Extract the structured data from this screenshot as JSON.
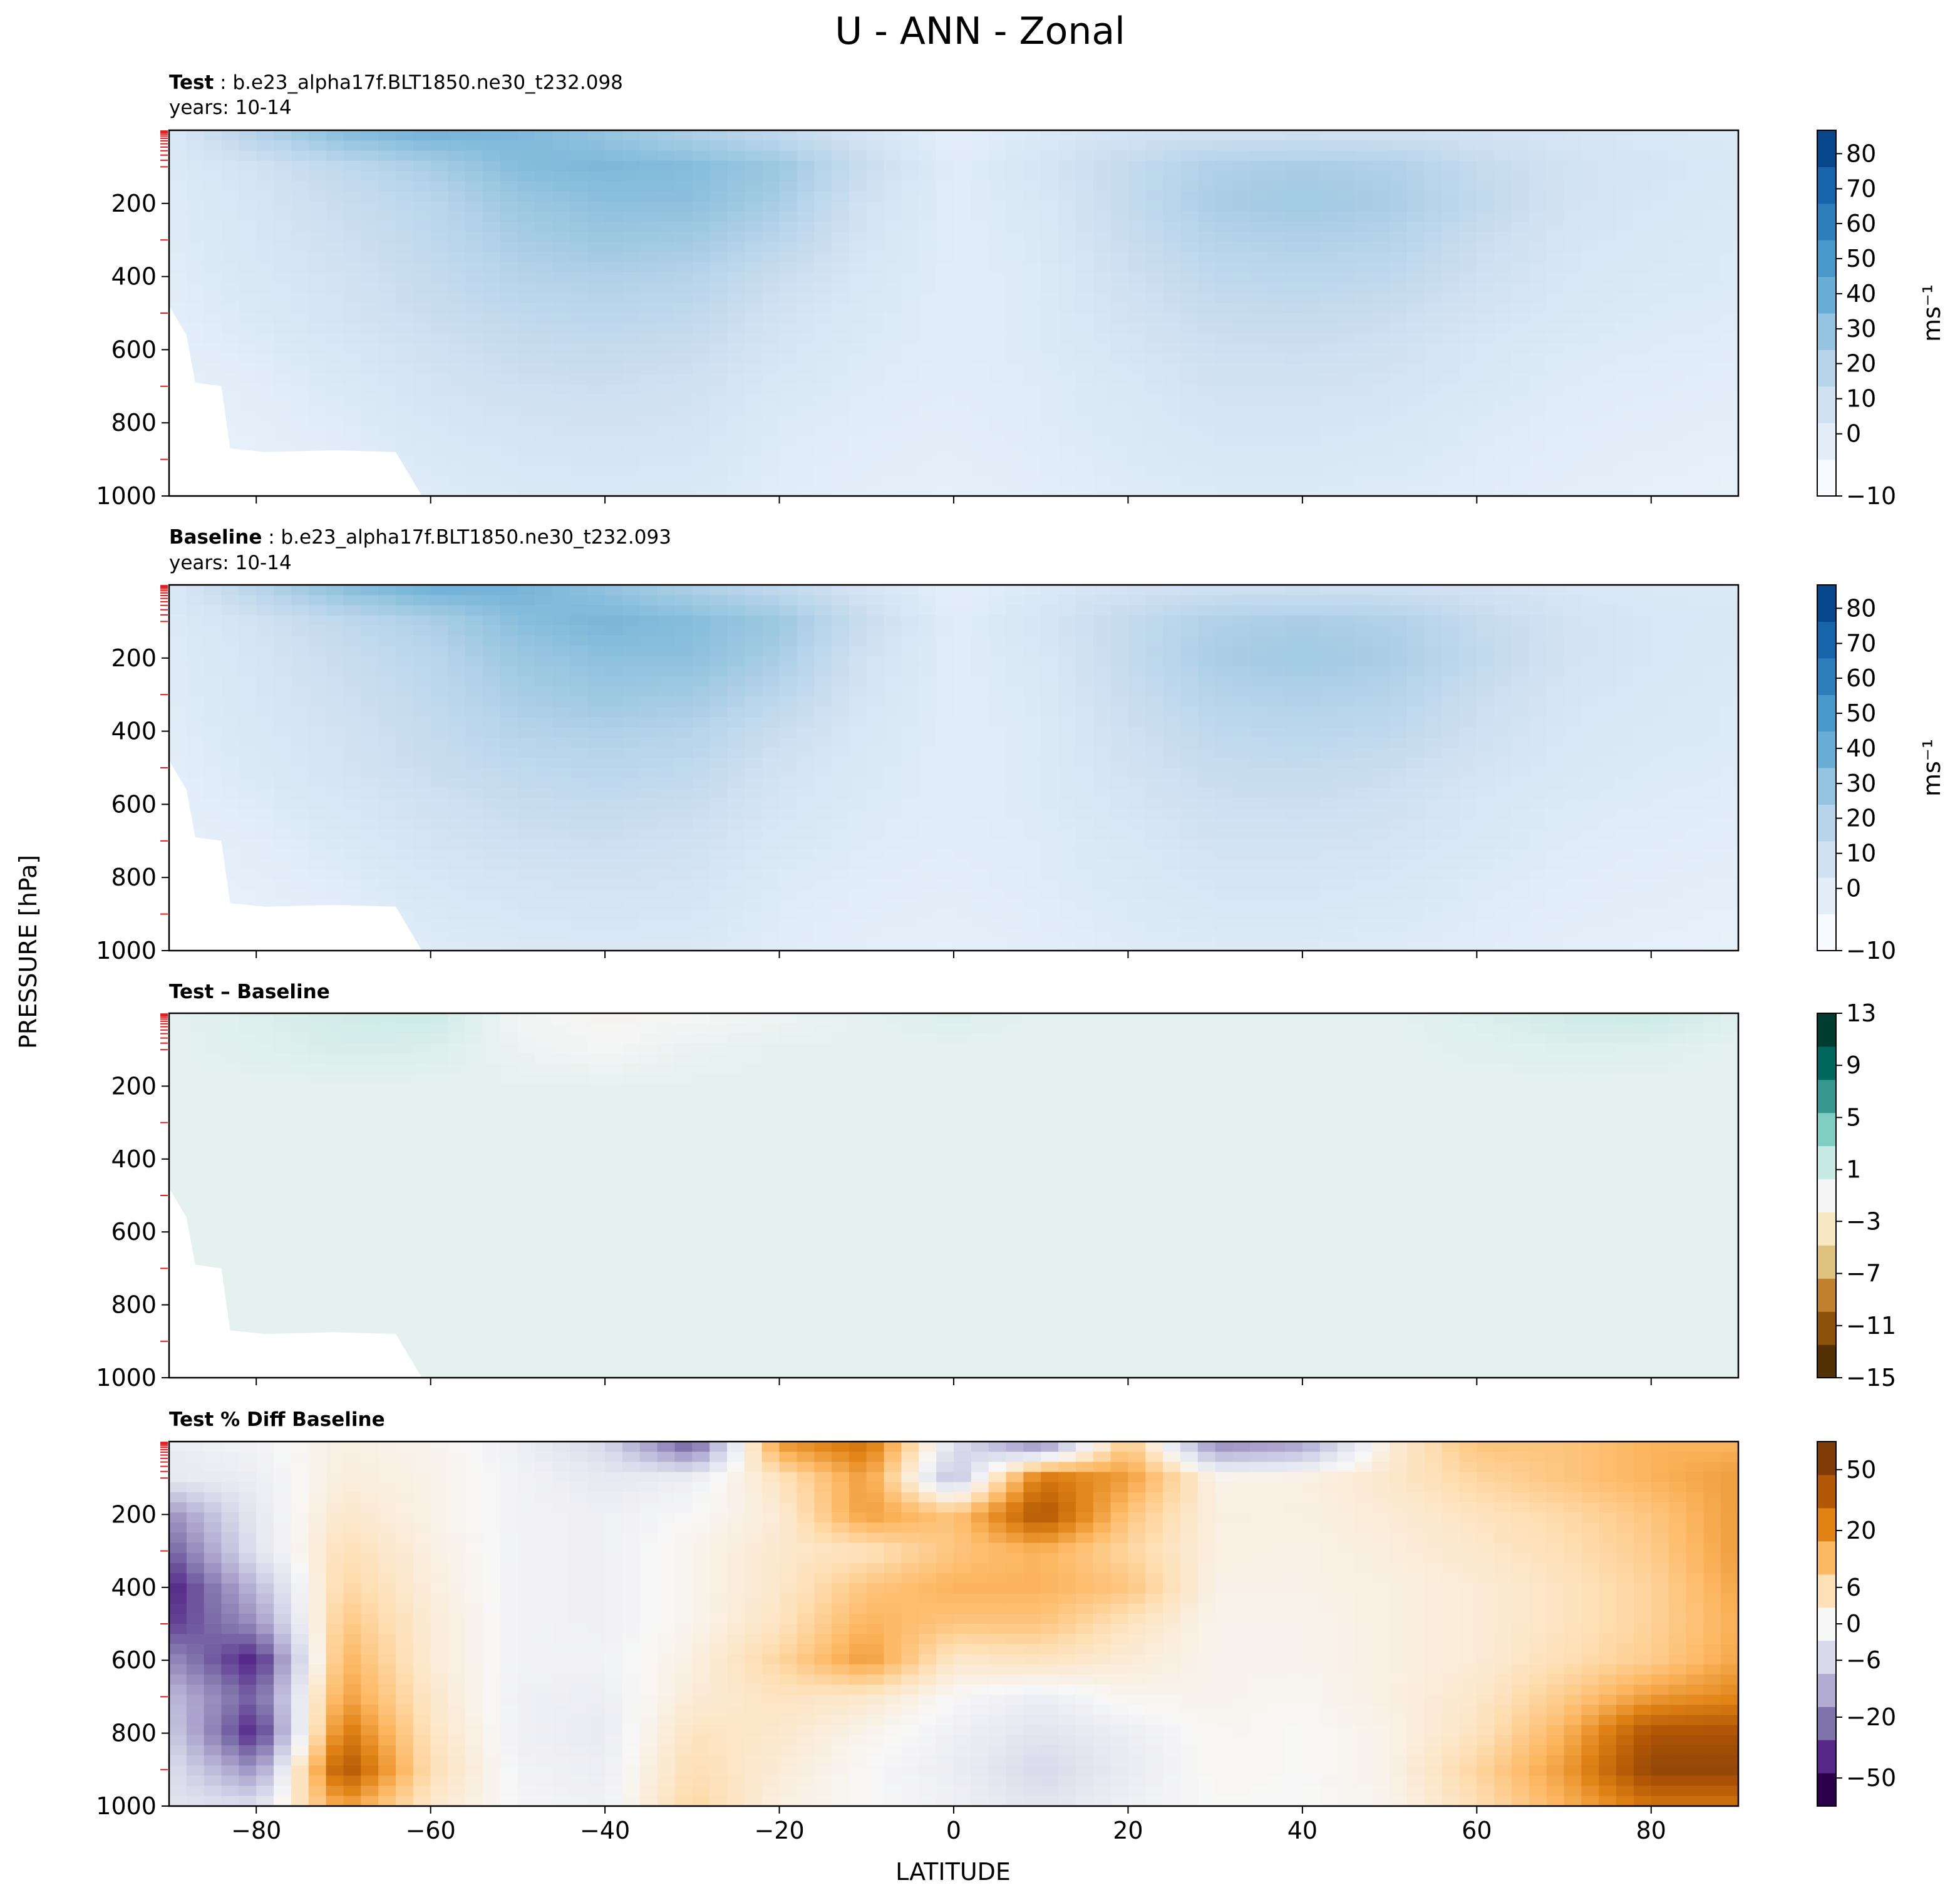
{
  "figure": {
    "title": "U - ANN - Zonal",
    "ylabel": "PRESSURE [hPa]",
    "xlabel": "LATITUDE"
  },
  "panels": [
    {
      "label_bold": "Test",
      "label_rest": " : b.e23_alpha17f.BLT1850.ne30_t232.098",
      "years": "years: 10-14",
      "yticks": [
        "200",
        "400",
        "600",
        "800",
        "1000"
      ],
      "colorbar": {
        "ticks": [
          "80",
          "70",
          "60",
          "50",
          "40",
          "30",
          "20",
          "10",
          "0",
          "−10"
        ],
        "unit": "ms⁻¹"
      }
    },
    {
      "label_bold": "Baseline",
      "label_rest": " : b.e23_alpha17f.BLT1850.ne30_t232.093",
      "years": "years: 10-14",
      "yticks": [
        "200",
        "400",
        "600",
        "800",
        "1000"
      ],
      "colorbar": {
        "ticks": [
          "80",
          "70",
          "60",
          "50",
          "40",
          "30",
          "20",
          "10",
          "0",
          "−10"
        ],
        "unit": "ms⁻¹"
      }
    },
    {
      "label_bold": "Test – Baseline",
      "label_rest": "",
      "years": "",
      "yticks": [
        "200",
        "400",
        "600",
        "800",
        "1000"
      ],
      "colorbar": {
        "ticks": [
          "13",
          "9",
          "5",
          "1",
          "−3",
          "−7",
          "−11",
          "−15"
        ],
        "unit": ""
      }
    },
    {
      "label_bold": "Test % Diff Baseline",
      "label_rest": "",
      "years": "",
      "yticks": [
        "200",
        "400",
        "600",
        "800",
        "1000"
      ],
      "xticks": [
        "−80",
        "−60",
        "−40",
        "−20",
        "0",
        "20",
        "40",
        "60",
        "80"
      ],
      "colorbar": {
        "ticks": [
          "50",
          "20",
          "6",
          "0",
          "−6",
          "−20",
          "−50"
        ],
        "unit": ""
      }
    }
  ],
  "colors": {
    "test_baseline_scale": [
      "#f7fbff",
      "#e3eef9",
      "#d0e1f2",
      "#b7d4ea",
      "#94c4df",
      "#6aaed6",
      "#4a98c9",
      "#2e7ebc",
      "#1764ab",
      "#08468b"
    ],
    "diff_scale": [
      "#543005",
      "#8c510a",
      "#bf812d",
      "#dfc27d",
      "#f6e8c3",
      "#f5f5f5",
      "#c7eae5",
      "#80cdc1",
      "#35978f",
      "#01665e",
      "#003c30"
    ],
    "pct_scale": [
      "#2d004b",
      "#542788",
      "#8073ac",
      "#b2abd2",
      "#d8daeb",
      "#f7f7f7",
      "#fee0b6",
      "#fdb863",
      "#e08214",
      "#b35806",
      "#7f3b08"
    ]
  },
  "chart_data": [
    {
      "type": "heatmap",
      "title": "Test : b.e23_alpha17f.BLT1850.ne30_t232.098",
      "xlabel": "LATITUDE",
      "ylabel": "PRESSURE [hPa]",
      "xlim": [
        -90,
        90
      ],
      "ylim": [
        1000,
        0
      ],
      "clim": [
        -10,
        85
      ],
      "x": [
        -90,
        -80,
        -70,
        -60,
        -50,
        -40,
        -30,
        -20,
        -10,
        0,
        10,
        20,
        30,
        40,
        50,
        60,
        70,
        80,
        90
      ],
      "y": [
        10,
        100,
        200,
        300,
        400,
        500,
        600,
        700,
        800,
        900,
        1000
      ],
      "z": [
        [
          5,
          22,
          35,
          40,
          38,
          32,
          25,
          18,
          8,
          0,
          5,
          10,
          12,
          12,
          12,
          10,
          8,
          6,
          4
        ],
        [
          4,
          10,
          18,
          26,
          36,
          38,
          36,
          30,
          14,
          2,
          8,
          16,
          24,
          26,
          24,
          16,
          10,
          8,
          6
        ],
        [
          3,
          8,
          14,
          20,
          30,
          34,
          34,
          26,
          10,
          2,
          6,
          16,
          26,
          28,
          26,
          18,
          10,
          7,
          5
        ],
        [
          3,
          7,
          12,
          18,
          26,
          30,
          28,
          20,
          8,
          2,
          5,
          14,
          22,
          24,
          22,
          14,
          8,
          6,
          4
        ],
        [
          2,
          6,
          10,
          16,
          22,
          24,
          22,
          14,
          6,
          2,
          4,
          12,
          18,
          20,
          18,
          12,
          7,
          5,
          4
        ],
        [
          1,
          5,
          9,
          14,
          18,
          20,
          18,
          10,
          5,
          2,
          4,
          10,
          15,
          16,
          14,
          9,
          6,
          4,
          3
        ],
        [
          0,
          3,
          7,
          11,
          15,
          16,
          14,
          8,
          4,
          2,
          4,
          8,
          12,
          13,
          11,
          7,
          4,
          3,
          2
        ],
        [
          -1,
          1,
          5,
          9,
          12,
          13,
          11,
          6,
          3,
          2,
          3,
          6,
          10,
          10,
          9,
          6,
          3,
          2,
          1
        ],
        [
          -2,
          0,
          3,
          7,
          9,
          10,
          9,
          4,
          2,
          1,
          3,
          5,
          8,
          8,
          7,
          4,
          2,
          1,
          0
        ],
        [
          -3,
          -1,
          1,
          5,
          7,
          8,
          7,
          3,
          1,
          0,
          2,
          4,
          6,
          6,
          5,
          3,
          1,
          0,
          -1
        ],
        [
          -4,
          -2,
          -1,
          3,
          5,
          6,
          5,
          2,
          0,
          -1,
          1,
          3,
          4,
          4,
          3,
          2,
          0,
          -1,
          -2
        ]
      ]
    },
    {
      "type": "heatmap",
      "title": "Baseline : b.e23_alpha17f.BLT1850.ne30_t232.093",
      "xlabel": "LATITUDE",
      "ylabel": "PRESSURE [hPa]",
      "xlim": [
        -90,
        90
      ],
      "ylim": [
        1000,
        0
      ],
      "clim": [
        -10,
        85
      ],
      "x": [
        -90,
        -80,
        -70,
        -60,
        -50,
        -40,
        -30,
        -20,
        -10,
        0,
        10,
        20,
        30,
        40,
        50,
        60,
        70,
        80,
        90
      ],
      "y": [
        10,
        100,
        200,
        300,
        400,
        500,
        600,
        700,
        800,
        900,
        1000
      ],
      "z": [
        [
          5,
          21,
          34,
          41,
          40,
          33,
          25,
          18,
          8,
          0,
          5,
          10,
          12,
          12,
          12,
          10,
          7,
          5,
          4
        ],
        [
          4,
          10,
          18,
          25,
          35,
          39,
          36,
          30,
          14,
          2,
          8,
          16,
          24,
          26,
          24,
          16,
          10,
          7,
          6
        ],
        [
          3,
          8,
          14,
          20,
          30,
          34,
          34,
          26,
          10,
          2,
          6,
          16,
          26,
          28,
          26,
          18,
          10,
          7,
          5
        ],
        [
          3,
          7,
          12,
          18,
          26,
          30,
          28,
          20,
          8,
          2,
          5,
          14,
          22,
          24,
          22,
          14,
          8,
          6,
          4
        ],
        [
          2,
          6,
          10,
          16,
          22,
          24,
          22,
          14,
          6,
          2,
          4,
          12,
          18,
          20,
          18,
          12,
          7,
          5,
          4
        ],
        [
          1,
          5,
          9,
          14,
          18,
          20,
          18,
          10,
          5,
          2,
          4,
          10,
          15,
          16,
          14,
          9,
          6,
          4,
          3
        ],
        [
          0,
          3,
          7,
          11,
          15,
          16,
          14,
          8,
          4,
          2,
          4,
          8,
          12,
          13,
          11,
          7,
          4,
          3,
          2
        ],
        [
          -1,
          1,
          5,
          9,
          12,
          13,
          11,
          6,
          3,
          2,
          3,
          6,
          10,
          10,
          9,
          6,
          3,
          2,
          1
        ],
        [
          -2,
          0,
          3,
          7,
          9,
          10,
          9,
          4,
          2,
          1,
          3,
          5,
          8,
          8,
          7,
          4,
          2,
          1,
          0
        ],
        [
          -3,
          -1,
          1,
          5,
          7,
          8,
          7,
          3,
          1,
          0,
          2,
          4,
          6,
          6,
          5,
          3,
          1,
          0,
          -1
        ],
        [
          -4,
          -2,
          -1,
          3,
          5,
          6,
          5,
          2,
          0,
          -1,
          1,
          3,
          4,
          4,
          3,
          2,
          0,
          -1,
          -2
        ]
      ]
    },
    {
      "type": "heatmap",
      "title": "Test – Baseline",
      "xlabel": "LATITUDE",
      "ylabel": "PRESSURE [hPa]",
      "xlim": [
        -90,
        90
      ],
      "ylim": [
        1000,
        0
      ],
      "clim": [
        -15,
        13
      ],
      "x": [
        -90,
        -80,
        -70,
        -60,
        -50,
        -40,
        -30,
        -20,
        -10,
        0,
        10,
        20,
        30,
        40,
        50,
        60,
        70,
        80,
        90
      ],
      "y": [
        10,
        100,
        200,
        300,
        400,
        500,
        600,
        700,
        800,
        900,
        1000
      ],
      "z": [
        [
          0,
          0.5,
          1.2,
          1.5,
          -0.8,
          -1.2,
          -1.0,
          -0.5,
          0,
          0.5,
          0,
          0,
          0,
          0,
          0,
          0.5,
          1.2,
          1.5,
          0.3
        ],
        [
          0,
          0.3,
          0.8,
          0.6,
          -0.4,
          -1.0,
          -0.3,
          0,
          0,
          0,
          0,
          0,
          0,
          0,
          0,
          0.2,
          0.4,
          0.3,
          0
        ],
        [
          0,
          0,
          0,
          0,
          0,
          0,
          0,
          0,
          0,
          0,
          0,
          0,
          0,
          0,
          0,
          0,
          0,
          0,
          0
        ],
        [
          0,
          0,
          0,
          0,
          0,
          0,
          0,
          0,
          0,
          0,
          0,
          0,
          0,
          0,
          0,
          0,
          0,
          0,
          0
        ],
        [
          0,
          0,
          0,
          0,
          0,
          0,
          0,
          0,
          0,
          0,
          0,
          0,
          0,
          0,
          0,
          0,
          0,
          0,
          0
        ],
        [
          0,
          0,
          0,
          0,
          0,
          0,
          0,
          0,
          0,
          0,
          0,
          0,
          0,
          0,
          0,
          0,
          0,
          0,
          0
        ],
        [
          0,
          0,
          0,
          0,
          0,
          0,
          0,
          0,
          0,
          0,
          0,
          0,
          0,
          0,
          0,
          0,
          0,
          0,
          0
        ],
        [
          0,
          0,
          0,
          0,
          0,
          0,
          0,
          0,
          0,
          0,
          0,
          0,
          0,
          0,
          0,
          0,
          0,
          0,
          0
        ],
        [
          0,
          0,
          0,
          0,
          0,
          0,
          0,
          0,
          0,
          0,
          0,
          0,
          0,
          0,
          0,
          0,
          0,
          0,
          0
        ],
        [
          0,
          0,
          0,
          0,
          0,
          0,
          0,
          0,
          0,
          0,
          0,
          0,
          0,
          0,
          0,
          0,
          0,
          0,
          0
        ],
        [
          0,
          0,
          0,
          0,
          0,
          0,
          0,
          0,
          0,
          0,
          0,
          0,
          0,
          0,
          0,
          0,
          0,
          0,
          0
        ]
      ]
    },
    {
      "type": "heatmap",
      "title": "Test % Diff Baseline",
      "xlabel": "LATITUDE",
      "ylabel": "PRESSURE [hPa]",
      "xlim": [
        -90,
        90
      ],
      "ylim": [
        1000,
        0
      ],
      "clim": [
        -60,
        60
      ],
      "x": [
        -90,
        -80,
        -70,
        -60,
        -50,
        -40,
        -30,
        -20,
        -10,
        0,
        10,
        20,
        30,
        40,
        50,
        60,
        70,
        80,
        90
      ],
      "y": [
        10,
        100,
        200,
        300,
        400,
        500,
        600,
        700,
        800,
        900,
        1000
      ],
      "z": [
        [
          -4,
          -2,
          4,
          2,
          -3,
          -12,
          -40,
          30,
          40,
          -10,
          -30,
          20,
          -30,
          -25,
          6,
          20,
          20,
          25,
          25
        ],
        [
          -6,
          -4,
          5,
          3,
          -2,
          -6,
          -4,
          10,
          30,
          -20,
          40,
          30,
          3,
          4,
          8,
          15,
          20,
          25,
          30
        ],
        [
          -30,
          -6,
          8,
          3,
          -2,
          -3,
          0,
          6,
          30,
          20,
          50,
          20,
          4,
          4,
          6,
          10,
          14,
          20,
          30
        ],
        [
          -40,
          -8,
          12,
          4,
          -2,
          -3,
          2,
          8,
          10,
          20,
          25,
          15,
          4,
          3,
          5,
          8,
          12,
          18,
          30
        ],
        [
          -50,
          -20,
          15,
          5,
          -2,
          -3,
          2,
          8,
          20,
          25,
          25,
          20,
          3,
          3,
          4,
          6,
          10,
          16,
          28
        ],
        [
          -45,
          -30,
          20,
          6,
          -2,
          -3,
          2,
          10,
          25,
          20,
          20,
          10,
          2,
          2,
          4,
          6,
          10,
          16,
          26
        ],
        [
          -30,
          -50,
          25,
          6,
          -2,
          -2,
          4,
          15,
          30,
          8,
          10,
          6,
          2,
          2,
          4,
          6,
          12,
          18,
          28
        ],
        [
          -20,
          -40,
          30,
          8,
          -3,
          -4,
          6,
          10,
          8,
          0,
          -4,
          2,
          2,
          1,
          4,
          8,
          18,
          30,
          35
        ],
        [
          -15,
          -50,
          40,
          10,
          -3,
          -5,
          10,
          8,
          2,
          -3,
          -8,
          -4,
          1,
          0,
          3,
          10,
          25,
          50,
          50
        ],
        [
          -10,
          -30,
          50,
          12,
          -2,
          -4,
          12,
          6,
          0,
          -4,
          -12,
          -5,
          1,
          0,
          3,
          15,
          30,
          55,
          55
        ],
        [
          -8,
          -10,
          30,
          8,
          -1,
          -3,
          15,
          4,
          0,
          -3,
          -8,
          -3,
          0,
          0,
          2,
          12,
          25,
          40,
          40
        ]
      ]
    }
  ]
}
